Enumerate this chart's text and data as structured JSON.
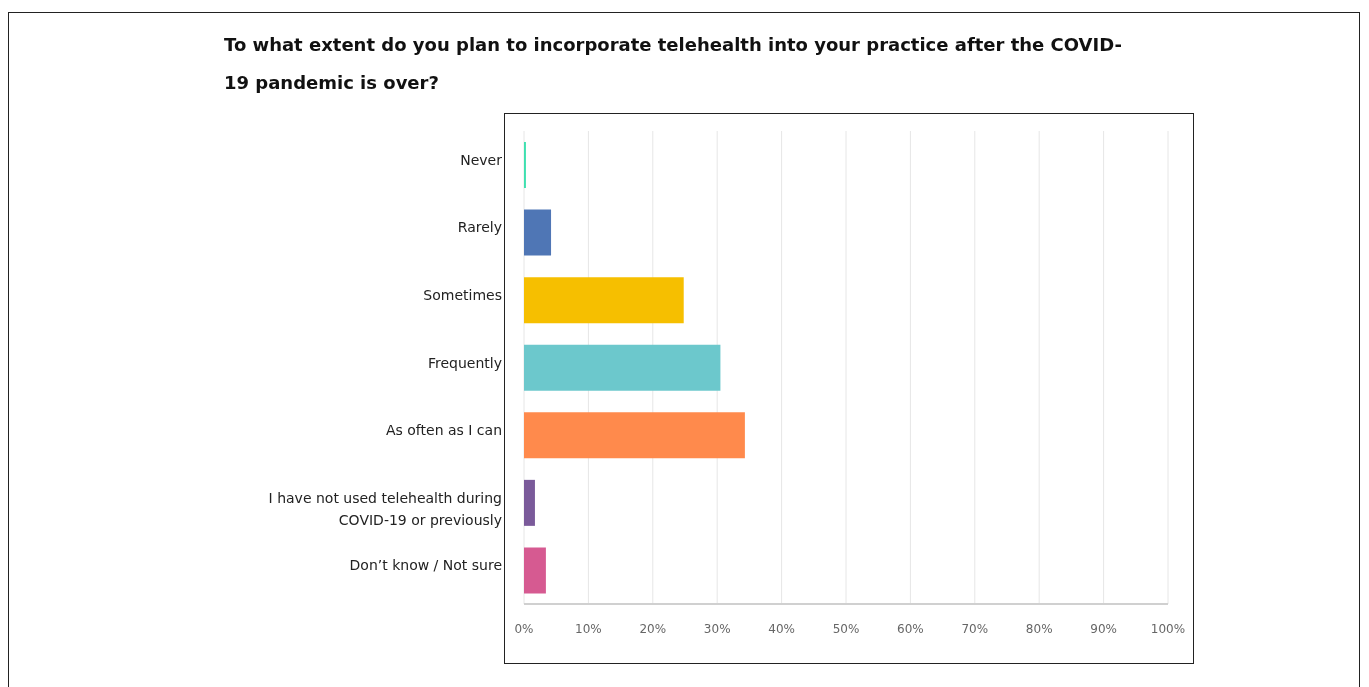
{
  "chart_data": {
    "type": "bar",
    "orientation": "horizontal",
    "title": "To what extent do you plan to incorporate telehealth into your practice after the COVID-19 pandemic is over?",
    "categories": [
      "Never",
      "Rarely",
      "Sometimes",
      "Frequently",
      "As often as I can",
      "I have not used telehealth during COVID-19 or previously",
      "Don’t know / Not sure"
    ],
    "values": [
      0.3,
      4.2,
      24.8,
      30.5,
      34.3,
      1.7,
      3.4
    ],
    "colors": [
      "#3ee0b0",
      "#4f76b5",
      "#f6bf00",
      "#6cc8cc",
      "#ff8a4c",
      "#7a5a9a",
      "#d65a91"
    ],
    "xlim": [
      0,
      100
    ],
    "xticks": [
      {
        "value": 0,
        "label": "0%"
      },
      {
        "value": 10,
        "label": "10%"
      },
      {
        "value": 20,
        "label": "20%"
      },
      {
        "value": 30,
        "label": "30%"
      },
      {
        "value": 40,
        "label": "40%"
      },
      {
        "value": 50,
        "label": "50%"
      },
      {
        "value": 60,
        "label": "60%"
      },
      {
        "value": 70,
        "label": "70%"
      },
      {
        "value": 80,
        "label": "80%"
      },
      {
        "value": 90,
        "label": "90%"
      },
      {
        "value": 100,
        "label": "100%"
      }
    ],
    "grid": "x"
  }
}
